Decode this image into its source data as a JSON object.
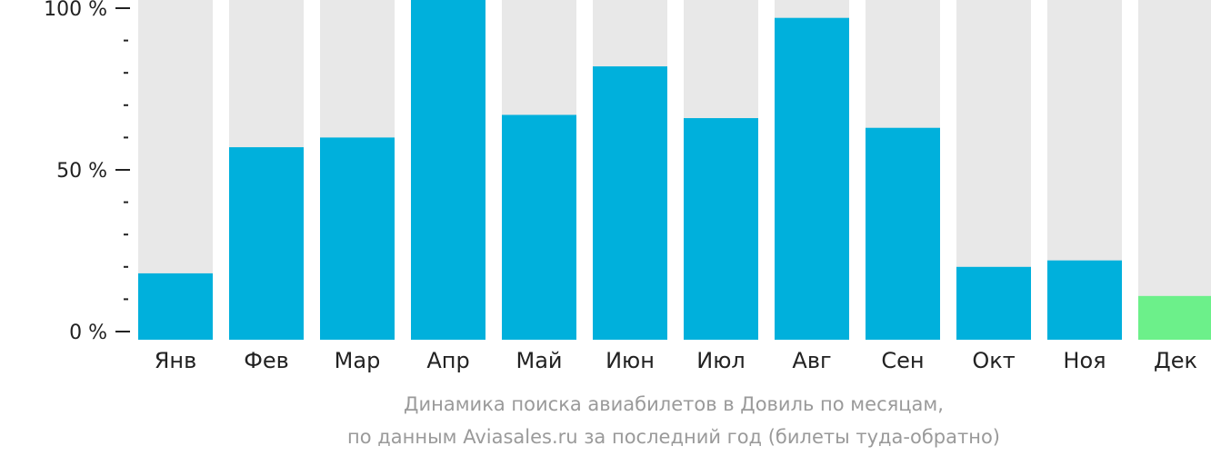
{
  "chart_data": {
    "type": "bar",
    "categories": [
      "Янв",
      "Фев",
      "Мар",
      "Апр",
      "Май",
      "Июн",
      "Июл",
      "Авг",
      "Сен",
      "Окт",
      "Ноя",
      "Дек"
    ],
    "values": [
      18,
      57,
      60,
      100,
      67,
      82,
      66,
      97,
      63,
      20,
      22,
      11
    ],
    "ylim": [
      0,
      100
    ],
    "y_ticks": [
      {
        "value": 0,
        "label": "0 %"
      },
      {
        "value": 50,
        "label": "50 %"
      },
      {
        "value": 100,
        "label": "100 %"
      }
    ],
    "minor_tick_step": 10,
    "highlight_index": 11,
    "title": "",
    "xlabel": "",
    "ylabel": "",
    "caption_lines": [
      "Динамика поиска авиабилетов в Довиль по месяцам,",
      "по данным Aviasales.ru за последний год (билеты туда-обратно)"
    ],
    "colors": {
      "bar": "#00b0dc",
      "highlight": "#6cf08a",
      "background_bar": "#e8e8e8",
      "axis": "#222222"
    },
    "grid": false,
    "legend": "none"
  }
}
